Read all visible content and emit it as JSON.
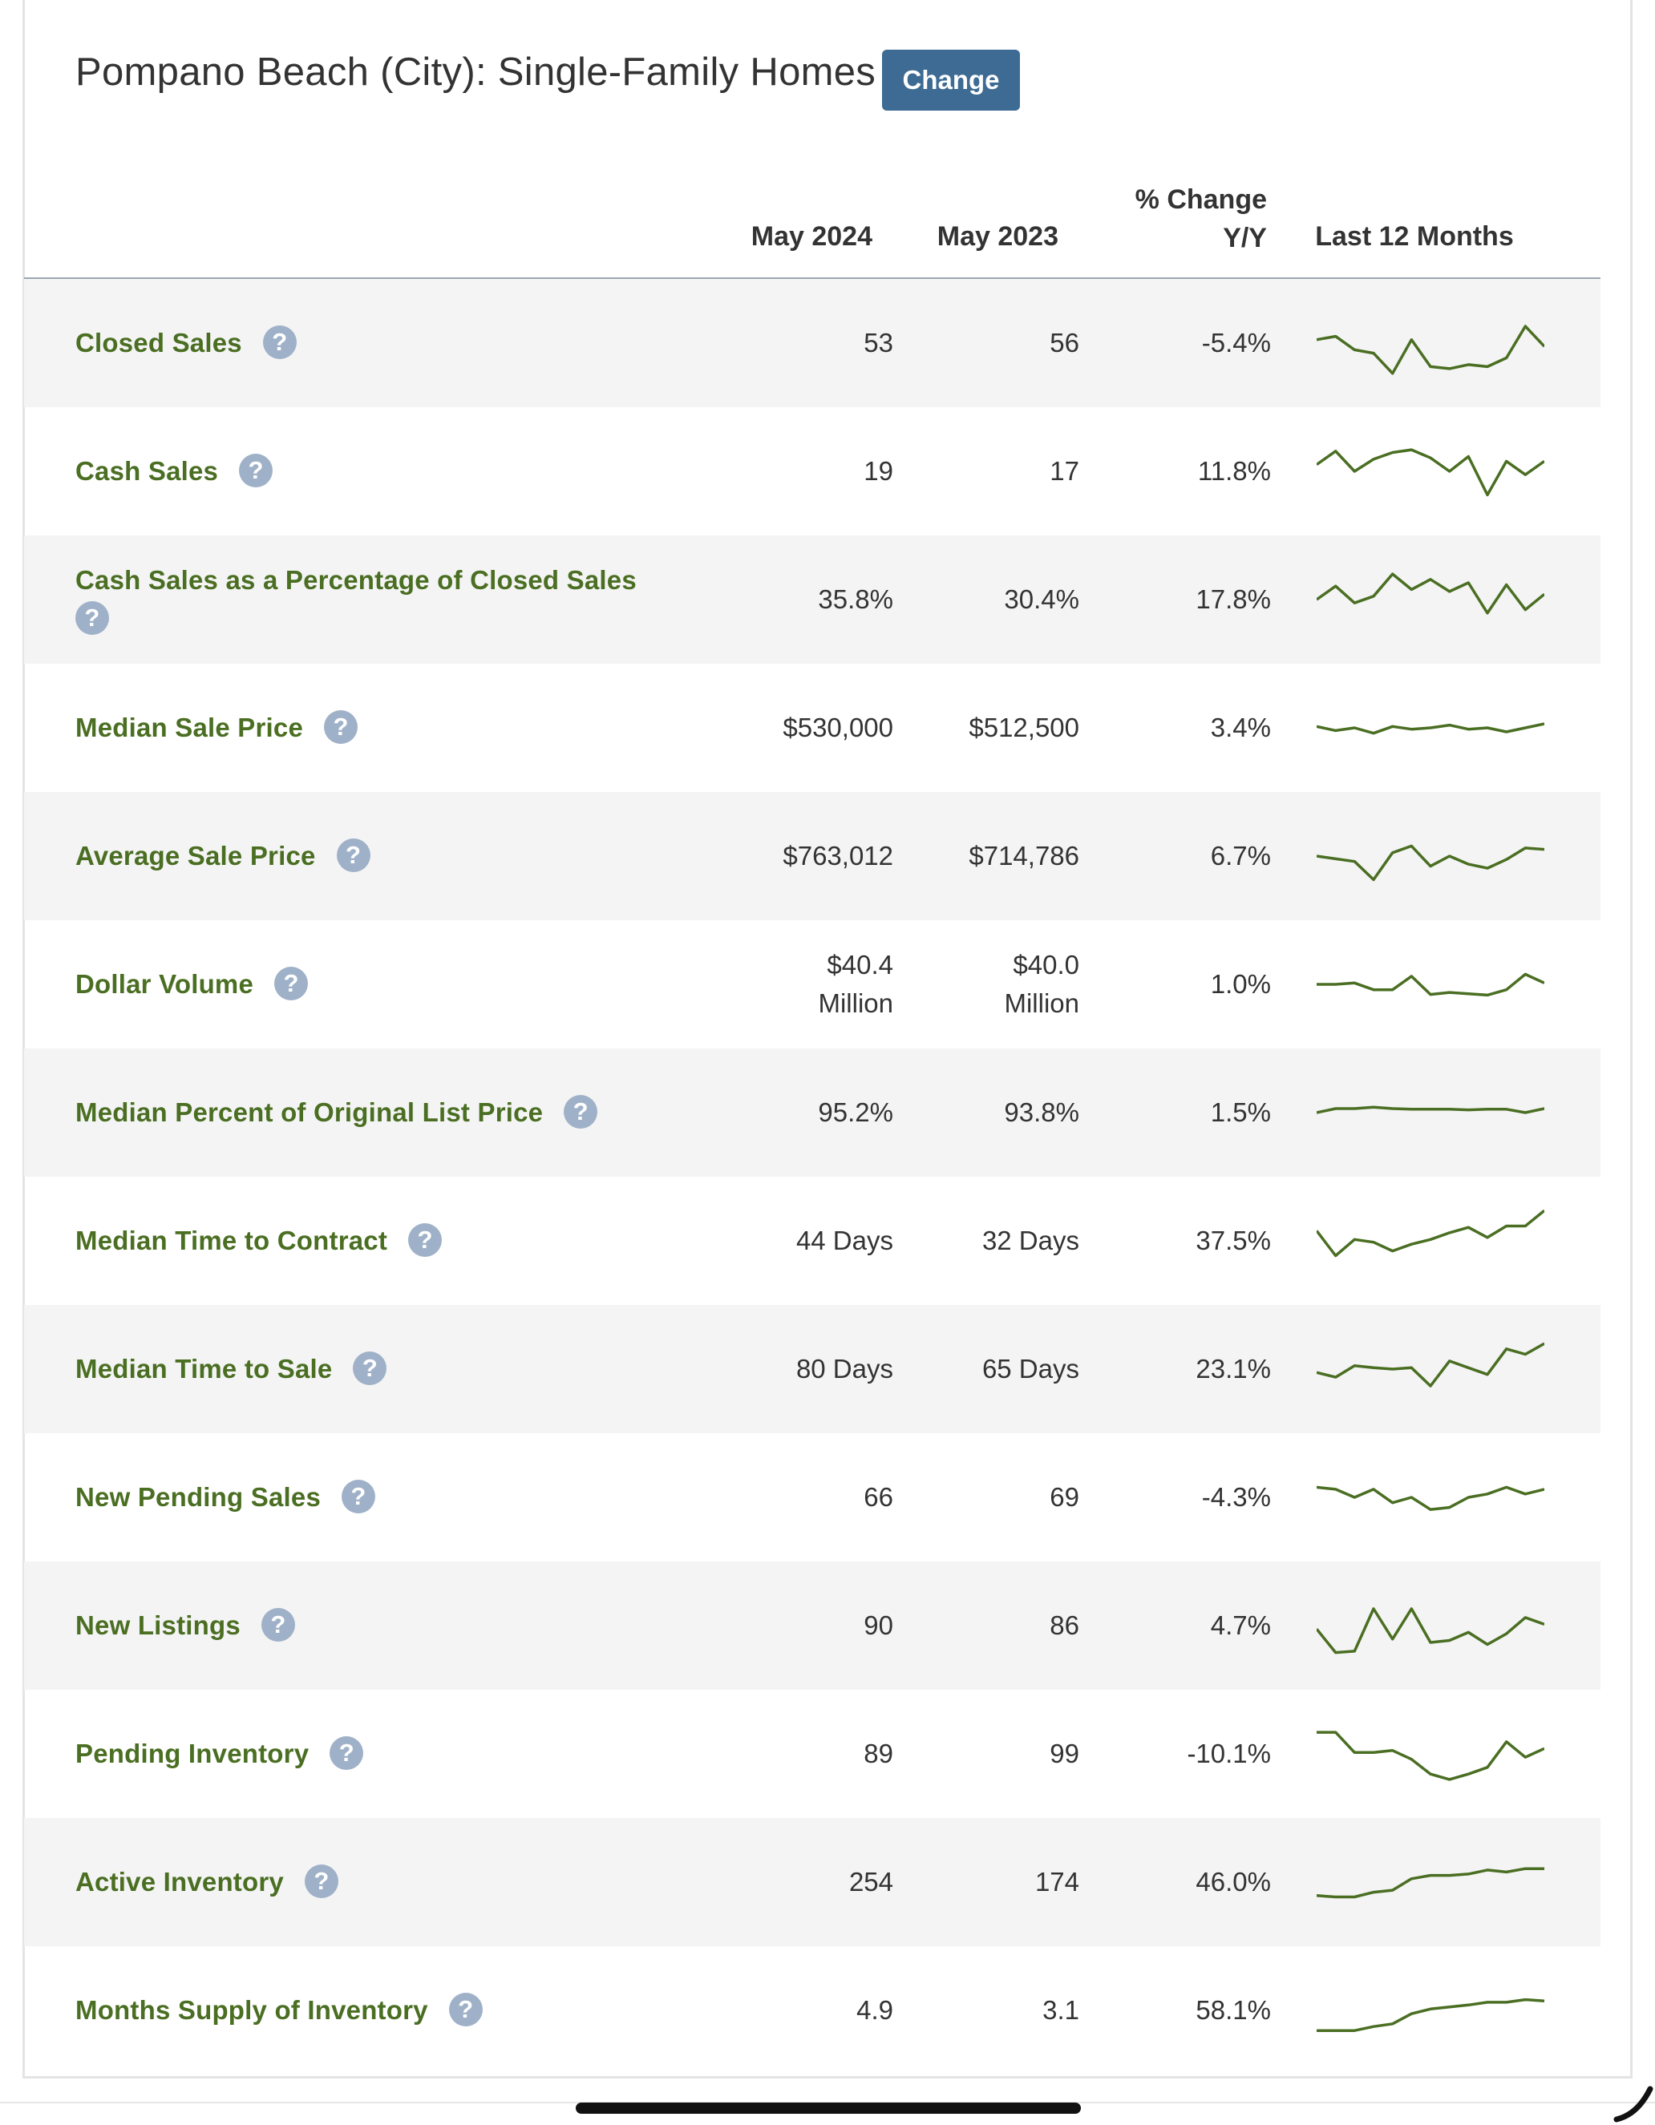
{
  "header": {
    "title": "Pompano Beach (City): Single-Family Homes",
    "change_label": "Change"
  },
  "columns": {
    "current": "May 2024",
    "previous": "May 2023",
    "change_line1": "% Change",
    "change_line2": "Y/Y",
    "sparkline": "Last 12 Months"
  },
  "help_glyph": "?",
  "colors": {
    "accent_green": "#4a6e22",
    "button_blue": "#3d6b93",
    "help_icon": "#9fb1c8",
    "row_shade": "#f4f4f4"
  },
  "rows": [
    {
      "label": "Closed Sales",
      "current": "53",
      "previous": "56",
      "change": "-5.4%",
      "trend": [
        0.55,
        0.6,
        0.4,
        0.35,
        0.05,
        0.55,
        0.15,
        0.12,
        0.18,
        0.15,
        0.28,
        0.75,
        0.45
      ]
    },
    {
      "label": "Cash Sales",
      "current": "19",
      "previous": "17",
      "change": "11.8%",
      "trend": [
        0.6,
        0.8,
        0.5,
        0.68,
        0.78,
        0.82,
        0.7,
        0.5,
        0.72,
        0.15,
        0.65,
        0.45,
        0.65
      ]
    },
    {
      "label": "Cash Sales as a Percentage of Closed Sales",
      "current": "35.8%",
      "previous": "30.4%",
      "change": "17.8%",
      "trend": [
        0.5,
        0.7,
        0.45,
        0.55,
        0.88,
        0.65,
        0.8,
        0.62,
        0.75,
        0.3,
        0.72,
        0.35,
        0.58
      ]
    },
    {
      "label": "Median Sale Price",
      "current": "$530,000",
      "previous": "$512,500",
      "change": "3.4%",
      "trend": [
        0.52,
        0.46,
        0.5,
        0.42,
        0.52,
        0.48,
        0.5,
        0.54,
        0.48,
        0.5,
        0.44,
        0.5,
        0.56
      ]
    },
    {
      "label": "Average Sale Price",
      "current": "$763,012",
      "previous": "$714,786",
      "change": "6.7%",
      "trend": [
        0.5,
        0.46,
        0.42,
        0.15,
        0.55,
        0.65,
        0.35,
        0.5,
        0.38,
        0.32,
        0.45,
        0.62,
        0.6
      ]
    },
    {
      "label": "Dollar Volume",
      "current": "$40.4 Million",
      "previous": "$40.0 Million",
      "change": "1.0%",
      "trend": [
        0.5,
        0.5,
        0.52,
        0.42,
        0.42,
        0.62,
        0.35,
        0.38,
        0.36,
        0.34,
        0.42,
        0.65,
        0.52
      ]
    },
    {
      "label": "Median Percent of Original List Price",
      "current": "95.2%",
      "previous": "93.8%",
      "change": "1.5%",
      "trend": [
        0.5,
        0.56,
        0.56,
        0.58,
        0.56,
        0.55,
        0.55,
        0.55,
        0.54,
        0.55,
        0.55,
        0.5,
        0.56
      ]
    },
    {
      "label": "Median Time to Contract",
      "current": "44 Days",
      "previous": "32 Days",
      "change": "37.5%",
      "trend": [
        0.65,
        0.28,
        0.52,
        0.48,
        0.35,
        0.45,
        0.52,
        0.62,
        0.7,
        0.55,
        0.72,
        0.72,
        0.95
      ]
    },
    {
      "label": "Median Time to Sale",
      "current": "80 Days",
      "previous": "65 Days",
      "change": "23.1%",
      "trend": [
        0.45,
        0.38,
        0.55,
        0.52,
        0.5,
        0.52,
        0.25,
        0.62,
        0.52,
        0.42,
        0.8,
        0.72,
        0.88
      ]
    },
    {
      "label": "New Pending Sales",
      "current": "66",
      "previous": "69",
      "change": "-4.3%",
      "trend": [
        0.65,
        0.62,
        0.5,
        0.62,
        0.42,
        0.5,
        0.32,
        0.35,
        0.5,
        0.55,
        0.65,
        0.55,
        0.62
      ]
    },
    {
      "label": "New Listings",
      "current": "90",
      "previous": "86",
      "change": "4.7%",
      "trend": [
        0.45,
        0.1,
        0.12,
        0.75,
        0.3,
        0.75,
        0.25,
        0.28,
        0.4,
        0.22,
        0.38,
        0.62,
        0.52
      ]
    },
    {
      "label": "Pending Inventory",
      "current": "89",
      "previous": "99",
      "change": "-10.1%",
      "trend": [
        0.82,
        0.82,
        0.52,
        0.52,
        0.55,
        0.42,
        0.2,
        0.12,
        0.2,
        0.3,
        0.68,
        0.45,
        0.58
      ]
    },
    {
      "label": "Active Inventory",
      "current": "254",
      "previous": "174",
      "change": "46.0%",
      "trend": [
        0.3,
        0.28,
        0.28,
        0.35,
        0.38,
        0.55,
        0.6,
        0.6,
        0.62,
        0.68,
        0.65,
        0.7,
        0.7
      ]
    },
    {
      "label": "Months Supply of Inventory",
      "current": "4.9",
      "previous": "3.1",
      "change": "58.1%",
      "trend": [
        0.2,
        0.2,
        0.2,
        0.26,
        0.3,
        0.45,
        0.52,
        0.55,
        0.58,
        0.62,
        0.62,
        0.66,
        0.64
      ]
    }
  ]
}
